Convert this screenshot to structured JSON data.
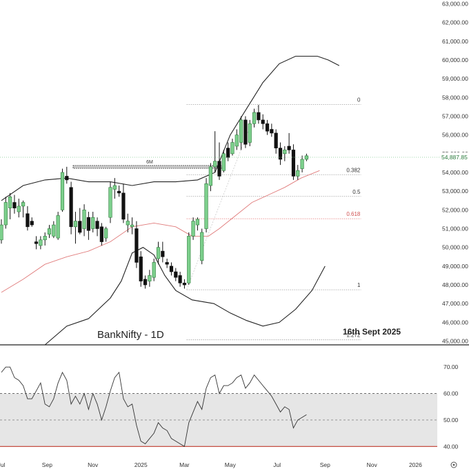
{
  "chart_data": {
    "type": "candlestick",
    "symbol_label": "BankNifty - 1D",
    "date_label": "16th Sept 2025",
    "range_label": "6M",
    "last_price_label": "54,887.85",
    "price_axis": {
      "ylim": [
        44800,
        63200
      ],
      "ticks": [
        "63,000.00",
        "62,000.00",
        "61,000.00",
        "60,000.00",
        "59,000.00",
        "58,000.00",
        "57,000.00",
        "56,000.00",
        "55,000.00",
        "54,000.00",
        "53,000.00",
        "52,000.00",
        "51,000.00",
        "50,000.00",
        "49,000.00",
        "48,000.00",
        "47,000.00",
        "46,000.00",
        "45,000.00"
      ],
      "tick_values": [
        63000,
        62000,
        61000,
        60000,
        59000,
        58000,
        57000,
        56000,
        55000,
        54000,
        53000,
        52000,
        51000,
        50000,
        49000,
        48000,
        47000,
        46000,
        45000
      ]
    },
    "x_axis": {
      "labels": [
        "Jul",
        "Sep",
        "Nov",
        "2025",
        "Mar",
        "May",
        "Jul",
        "Sep",
        "Nov",
        "2026"
      ],
      "bar_index": [
        0,
        42,
        84,
        128,
        168,
        210,
        253,
        297,
        340,
        380
      ]
    },
    "fibonacci": {
      "start_index": 170,
      "end_index": 330,
      "levels": [
        {
          "label": "0",
          "value": 57630,
          "color": "#9e9e9e"
        },
        {
          "label": "0.382",
          "value": 53880,
          "color": "#9e9e9e"
        },
        {
          "label": "0.5",
          "value": 52720,
          "color": "#9e9e9e"
        },
        {
          "label": "0.618",
          "value": 51530,
          "color": "#e57373"
        },
        {
          "label": "1",
          "value": 47740,
          "color": "#9e9e9e"
        },
        {
          "label": "1.272",
          "value": 45070,
          "color": "#9e9e9e"
        }
      ]
    },
    "candles": [
      {
        "i": 0,
        "o": 50400,
        "h": 51500,
        "l": 50200,
        "c": 51200
      },
      {
        "i": 4,
        "o": 51200,
        "h": 52700,
        "l": 51000,
        "c": 52400
      },
      {
        "i": 8,
        "o": 52100,
        "h": 52900,
        "l": 51500,
        "c": 52700
      },
      {
        "i": 12,
        "o": 52400,
        "h": 52800,
        "l": 51800,
        "c": 52100
      },
      {
        "i": 16,
        "o": 51900,
        "h": 52600,
        "l": 51600,
        "c": 52200
      },
      {
        "i": 20,
        "o": 52200,
        "h": 52500,
        "l": 51600,
        "c": 52400
      },
      {
        "i": 24,
        "o": 51800,
        "h": 52200,
        "l": 50900,
        "c": 51100
      },
      {
        "i": 28,
        "o": 51400,
        "h": 51600,
        "l": 51100,
        "c": 51200
      },
      {
        "i": 32,
        "o": 50300,
        "h": 50600,
        "l": 49900,
        "c": 50200
      },
      {
        "i": 36,
        "o": 50100,
        "h": 50600,
        "l": 49900,
        "c": 50400
      },
      {
        "i": 40,
        "o": 50400,
        "h": 50800,
        "l": 50100,
        "c": 50600
      },
      {
        "i": 44,
        "o": 50700,
        "h": 51200,
        "l": 50500,
        "c": 51000
      },
      {
        "i": 48,
        "o": 50600,
        "h": 51400,
        "l": 50500,
        "c": 51200
      },
      {
        "i": 52,
        "o": 50500,
        "h": 51900,
        "l": 50400,
        "c": 51700
      },
      {
        "i": 56,
        "o": 52000,
        "h": 54200,
        "l": 51900,
        "c": 54000
      },
      {
        "i": 60,
        "o": 53800,
        "h": 54300,
        "l": 53400,
        "c": 53600
      },
      {
        "i": 64,
        "o": 53200,
        "h": 53500,
        "l": 50700,
        "c": 51100
      },
      {
        "i": 68,
        "o": 51100,
        "h": 51900,
        "l": 50200,
        "c": 51400
      },
      {
        "i": 72,
        "o": 51400,
        "h": 52100,
        "l": 50700,
        "c": 50800
      },
      {
        "i": 76,
        "o": 51000,
        "h": 52300,
        "l": 50600,
        "c": 52000
      },
      {
        "i": 80,
        "o": 51600,
        "h": 51900,
        "l": 50400,
        "c": 50900
      },
      {
        "i": 84,
        "o": 51000,
        "h": 51900,
        "l": 50800,
        "c": 51600
      },
      {
        "i": 88,
        "o": 51400,
        "h": 51600,
        "l": 50600,
        "c": 51000
      },
      {
        "i": 92,
        "o": 51100,
        "h": 51300,
        "l": 50100,
        "c": 50300
      },
      {
        "i": 96,
        "o": 50500,
        "h": 51100,
        "l": 50300,
        "c": 51000
      },
      {
        "i": 100,
        "o": 51600,
        "h": 53500,
        "l": 51300,
        "c": 53200
      },
      {
        "i": 104,
        "o": 53100,
        "h": 53700,
        "l": 52600,
        "c": 53300
      },
      {
        "i": 108,
        "o": 53000,
        "h": 53300,
        "l": 52700,
        "c": 52900
      },
      {
        "i": 112,
        "o": 52900,
        "h": 53400,
        "l": 51300,
        "c": 51500
      },
      {
        "i": 116,
        "o": 51200,
        "h": 51800,
        "l": 50800,
        "c": 51400
      },
      {
        "i": 120,
        "o": 51100,
        "h": 51600,
        "l": 50700,
        "c": 51200
      },
      {
        "i": 124,
        "o": 51000,
        "h": 51400,
        "l": 48900,
        "c": 49200
      },
      {
        "i": 128,
        "o": 49500,
        "h": 49800,
        "l": 47900,
        "c": 48200
      },
      {
        "i": 132,
        "o": 48300,
        "h": 48500,
        "l": 47800,
        "c": 48000
      },
      {
        "i": 136,
        "o": 48200,
        "h": 48800,
        "l": 47900,
        "c": 48500
      },
      {
        "i": 140,
        "o": 48400,
        "h": 49400,
        "l": 48200,
        "c": 49200
      },
      {
        "i": 144,
        "o": 49400,
        "h": 50300,
        "l": 49100,
        "c": 50000
      },
      {
        "i": 148,
        "o": 49800,
        "h": 50300,
        "l": 49200,
        "c": 49500
      },
      {
        "i": 152,
        "o": 49200,
        "h": 49400,
        "l": 48900,
        "c": 49100
      },
      {
        "i": 156,
        "o": 49000,
        "h": 49200,
        "l": 48500,
        "c": 48700
      },
      {
        "i": 160,
        "o": 48700,
        "h": 48900,
        "l": 48200,
        "c": 48400
      },
      {
        "i": 164,
        "o": 48500,
        "h": 48700,
        "l": 47900,
        "c": 48100
      },
      {
        "i": 168,
        "o": 48100,
        "h": 48300,
        "l": 47800,
        "c": 48000
      },
      {
        "i": 172,
        "o": 48100,
        "h": 50800,
        "l": 48000,
        "c": 50600
      },
      {
        "i": 176,
        "o": 50600,
        "h": 51600,
        "l": 50400,
        "c": 51400
      },
      {
        "i": 180,
        "o": 51200,
        "h": 51600,
        "l": 50900,
        "c": 51500
      },
      {
        "i": 184,
        "o": 49300,
        "h": 51000,
        "l": 49100,
        "c": 50800
      },
      {
        "i": 188,
        "o": 51000,
        "h": 53700,
        "l": 50800,
        "c": 53400
      },
      {
        "i": 192,
        "o": 53300,
        "h": 54500,
        "l": 53000,
        "c": 54300
      },
      {
        "i": 196,
        "o": 54300,
        "h": 56200,
        "l": 54000,
        "c": 54600
      },
      {
        "i": 200,
        "o": 54600,
        "h": 55600,
        "l": 53600,
        "c": 53800
      },
      {
        "i": 204,
        "o": 54100,
        "h": 55200,
        "l": 54000,
        "c": 55000
      },
      {
        "i": 208,
        "o": 55300,
        "h": 55600,
        "l": 54600,
        "c": 54800
      },
      {
        "i": 212,
        "o": 55000,
        "h": 55800,
        "l": 54900,
        "c": 55600
      },
      {
        "i": 216,
        "o": 55400,
        "h": 56300,
        "l": 55200,
        "c": 56000
      },
      {
        "i": 220,
        "o": 55600,
        "h": 57000,
        "l": 55200,
        "c": 56800
      },
      {
        "i": 224,
        "o": 56800,
        "h": 57000,
        "l": 55300,
        "c": 55500
      },
      {
        "i": 228,
        "o": 55600,
        "h": 56800,
        "l": 55400,
        "c": 56600
      },
      {
        "i": 232,
        "o": 56600,
        "h": 57400,
        "l": 56400,
        "c": 57200
      },
      {
        "i": 236,
        "o": 57200,
        "h": 57600,
        "l": 56600,
        "c": 56800
      },
      {
        "i": 240,
        "o": 56800,
        "h": 57100,
        "l": 56300,
        "c": 56600
      },
      {
        "i": 244,
        "o": 56600,
        "h": 56800,
        "l": 56000,
        "c": 56200
      },
      {
        "i": 248,
        "o": 56300,
        "h": 56600,
        "l": 55900,
        "c": 56100
      },
      {
        "i": 252,
        "o": 56100,
        "h": 56300,
        "l": 55000,
        "c": 55300
      },
      {
        "i": 256,
        "o": 55300,
        "h": 55600,
        "l": 54400,
        "c": 54700
      },
      {
        "i": 260,
        "o": 55000,
        "h": 55400,
        "l": 54600,
        "c": 55200
      },
      {
        "i": 264,
        "o": 55400,
        "h": 56100,
        "l": 55000,
        "c": 55200
      },
      {
        "i": 268,
        "o": 55200,
        "h": 55500,
        "l": 53600,
        "c": 53800
      },
      {
        "i": 272,
        "o": 53800,
        "h": 54400,
        "l": 53600,
        "c": 54100
      },
      {
        "i": 276,
        "o": 54200,
        "h": 54900,
        "l": 54000,
        "c": 54700
      },
      {
        "i": 280,
        "o": 54700,
        "h": 55000,
        "l": 54600,
        "c": 54888
      }
    ],
    "series": [
      {
        "name": "",
        "type": "bollinger-upper",
        "color": "#222222",
        "points": [
          [
            0,
            52500
          ],
          [
            20,
            53300
          ],
          [
            40,
            53600
          ],
          [
            60,
            53700
          ],
          [
            80,
            53500
          ],
          [
            100,
            53500
          ],
          [
            120,
            53300
          ],
          [
            140,
            53500
          ],
          [
            160,
            53500
          ],
          [
            180,
            53600
          ],
          [
            196,
            54000
          ],
          [
            210,
            56000
          ],
          [
            225,
            57400
          ],
          [
            240,
            58800
          ],
          [
            255,
            59800
          ],
          [
            270,
            60200
          ],
          [
            290,
            60200
          ],
          [
            300,
            60000
          ],
          [
            310,
            59700
          ]
        ]
      },
      {
        "name": "",
        "type": "bollinger-lower",
        "color": "#222222",
        "points": [
          [
            40,
            44800
          ],
          [
            60,
            45800
          ],
          [
            80,
            46200
          ],
          [
            100,
            47300
          ],
          [
            110,
            48200
          ],
          [
            120,
            49700
          ],
          [
            130,
            50000
          ],
          [
            140,
            49600
          ],
          [
            150,
            48500
          ],
          [
            160,
            47700
          ],
          [
            175,
            47200
          ],
          [
            195,
            47000
          ],
          [
            210,
            46500
          ],
          [
            225,
            46100
          ],
          [
            240,
            45800
          ],
          [
            255,
            46000
          ],
          [
            270,
            46700
          ],
          [
            285,
            47700
          ],
          [
            297,
            49000
          ]
        ]
      },
      {
        "name": "",
        "type": "moving-average",
        "color": "#e07a7a",
        "points": [
          [
            0,
            47600
          ],
          [
            20,
            48300
          ],
          [
            40,
            49100
          ],
          [
            60,
            49500
          ],
          [
            80,
            49800
          ],
          [
            100,
            50300
          ],
          [
            120,
            51100
          ],
          [
            140,
            51300
          ],
          [
            160,
            51100
          ],
          [
            175,
            50600
          ],
          [
            190,
            50600
          ],
          [
            200,
            51000
          ],
          [
            215,
            51700
          ],
          [
            230,
            52400
          ],
          [
            245,
            52800
          ],
          [
            260,
            53200
          ],
          [
            275,
            53700
          ],
          [
            292,
            54100
          ]
        ]
      }
    ],
    "rsi": {
      "ylim": [
        38,
        75
      ],
      "ticks": [
        "70.00",
        "60.00",
        "50.00",
        "40.00"
      ],
      "tick_values": [
        70,
        60,
        50,
        40
      ],
      "band": [
        40,
        60
      ],
      "values": [
        [
          0,
          68
        ],
        [
          4,
          70
        ],
        [
          8,
          70
        ],
        [
          12,
          66
        ],
        [
          16,
          65
        ],
        [
          20,
          63
        ],
        [
          24,
          58
        ],
        [
          28,
          58
        ],
        [
          32,
          61
        ],
        [
          36,
          64
        ],
        [
          40,
          56
        ],
        [
          44,
          55
        ],
        [
          48,
          58
        ],
        [
          52,
          64
        ],
        [
          56,
          68
        ],
        [
          60,
          65
        ],
        [
          64,
          56
        ],
        [
          68,
          59
        ],
        [
          72,
          56
        ],
        [
          76,
          60
        ],
        [
          80,
          54
        ],
        [
          84,
          60
        ],
        [
          88,
          56
        ],
        [
          92,
          50
        ],
        [
          96,
          55
        ],
        [
          100,
          61
        ],
        [
          104,
          66
        ],
        [
          108,
          68
        ],
        [
          112,
          58
        ],
        [
          116,
          55
        ],
        [
          120,
          56
        ],
        [
          124,
          48
        ],
        [
          128,
          42
        ],
        [
          132,
          41
        ],
        [
          136,
          43
        ],
        [
          140,
          45
        ],
        [
          144,
          49
        ],
        [
          148,
          47
        ],
        [
          152,
          46
        ],
        [
          156,
          43
        ],
        [
          160,
          42
        ],
        [
          164,
          41
        ],
        [
          168,
          40
        ],
        [
          172,
          49
        ],
        [
          176,
          53
        ],
        [
          180,
          57
        ],
        [
          184,
          54
        ],
        [
          188,
          62
        ],
        [
          192,
          66
        ],
        [
          196,
          67
        ],
        [
          200,
          60
        ],
        [
          204,
          63
        ],
        [
          208,
          63
        ],
        [
          212,
          64
        ],
        [
          216,
          66
        ],
        [
          220,
          67
        ],
        [
          224,
          62
        ],
        [
          228,
          64
        ],
        [
          232,
          67
        ],
        [
          236,
          65
        ],
        [
          240,
          63
        ],
        [
          244,
          61
        ],
        [
          248,
          59
        ],
        [
          252,
          56
        ],
        [
          256,
          53
        ],
        [
          260,
          55
        ],
        [
          264,
          54
        ],
        [
          268,
          47
        ],
        [
          272,
          50
        ],
        [
          276,
          51
        ],
        [
          280,
          52
        ]
      ]
    }
  }
}
